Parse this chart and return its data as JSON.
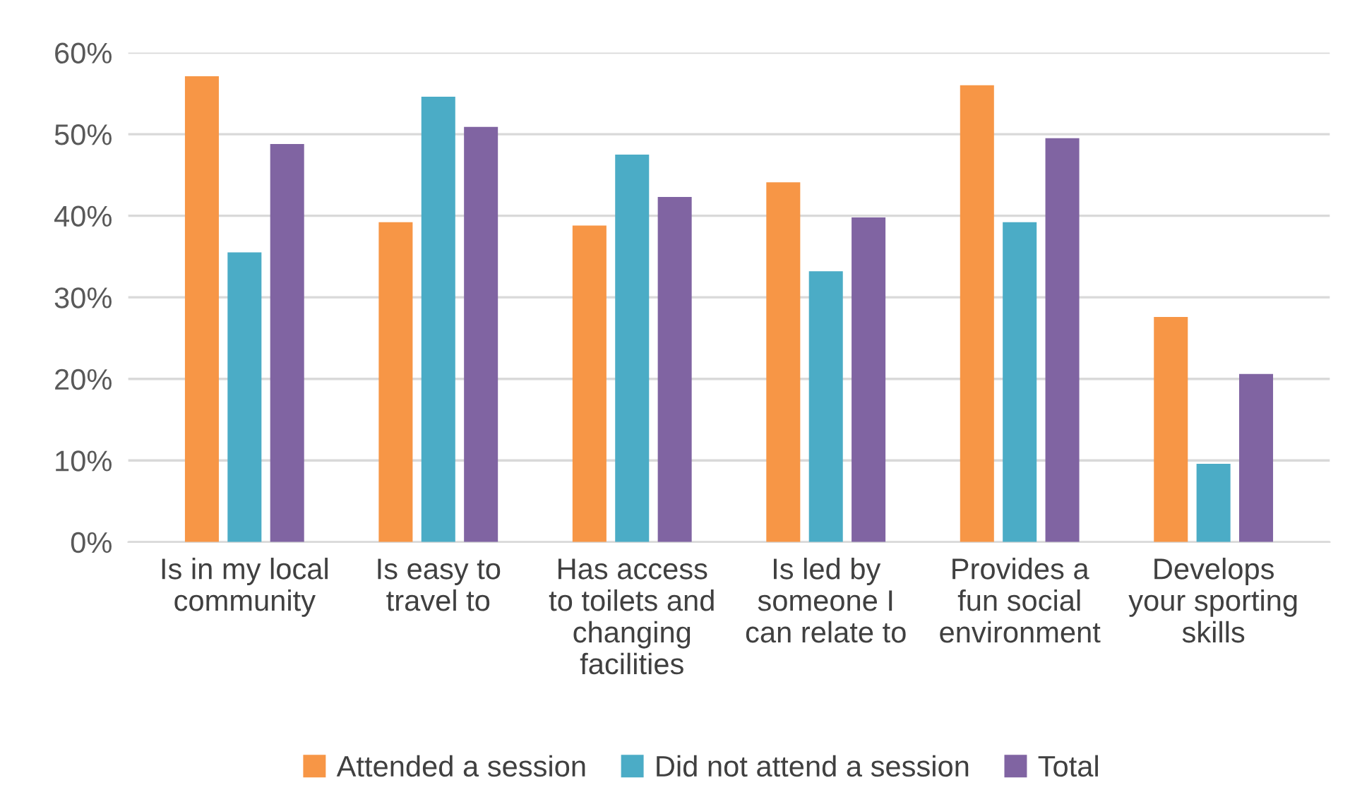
{
  "chart_data": {
    "type": "bar",
    "categories": [
      "Is in my local\ncommunity",
      "Is easy to\ntravel to",
      "Has access\nto toilets and\nchanging\nfacilities",
      "Is led by\nsomeone I\ncan relate to",
      "Provides a\nfun social\nenvironment",
      "Develops\nyour sporting\nskills"
    ],
    "series": [
      {
        "name": "Attended a session",
        "color": "#f79646",
        "values": [
          57.1,
          39.2,
          38.8,
          44.1,
          56.0,
          27.6
        ]
      },
      {
        "name": "Did not attend a session",
        "color": "#4bacc6",
        "values": [
          35.5,
          54.6,
          47.5,
          33.2,
          39.2,
          9.6
        ]
      },
      {
        "name": "Total",
        "color": "#8064a2",
        "values": [
          48.8,
          50.9,
          42.3,
          39.8,
          49.5,
          20.6
        ]
      }
    ],
    "ylim": [
      0,
      60
    ],
    "yticks": [
      {
        "value": 0,
        "label": "0%"
      },
      {
        "value": 10,
        "label": "10%"
      },
      {
        "value": 20,
        "label": "20%"
      },
      {
        "value": 30,
        "label": "30%"
      },
      {
        "value": 40,
        "label": "40%"
      },
      {
        "value": 50,
        "label": "50%"
      },
      {
        "value": 60,
        "label": "60%"
      }
    ],
    "grid": "y",
    "legend": "bottom"
  }
}
